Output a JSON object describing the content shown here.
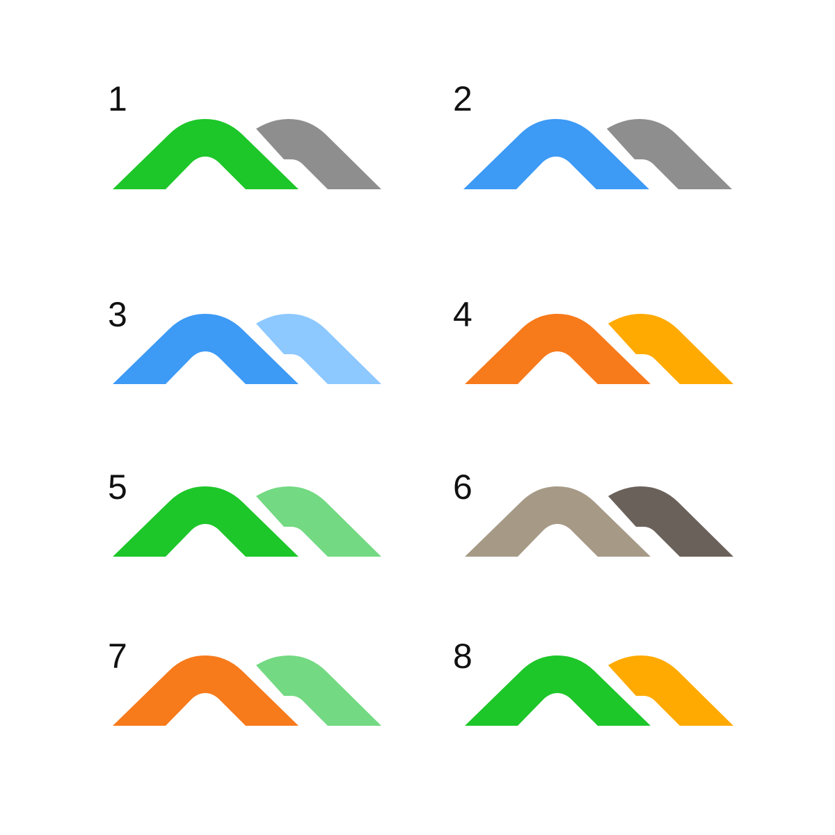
{
  "variants": [
    {
      "number": "1",
      "primary_color": "#1dc629",
      "secondary_color": "#8e8e8e"
    },
    {
      "number": "2",
      "primary_color": "#3d9af5",
      "secondary_color": "#8e8e8e"
    },
    {
      "number": "3",
      "primary_color": "#3d9af5",
      "secondary_color": "#8dc8ff"
    },
    {
      "number": "4",
      "primary_color": "#f77a1b",
      "secondary_color": "#ffaa00"
    },
    {
      "number": "5",
      "primary_color": "#1dc629",
      "secondary_color": "#73d982"
    },
    {
      "number": "6",
      "primary_color": "#a69a87",
      "secondary_color": "#6b615b"
    },
    {
      "number": "7",
      "primary_color": "#f77a1b",
      "secondary_color": "#73d982"
    },
    {
      "number": "8",
      "primary_color": "#1dc629",
      "secondary_color": "#ffaa00"
    }
  ]
}
